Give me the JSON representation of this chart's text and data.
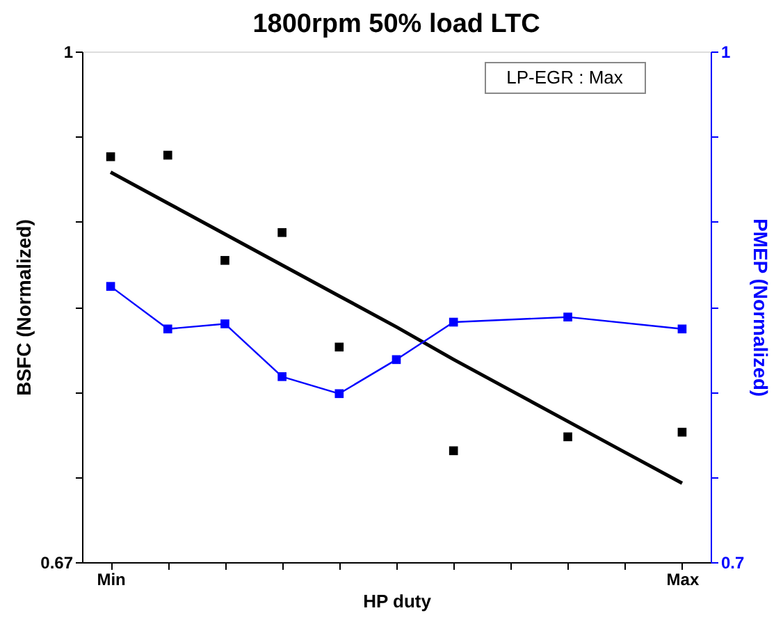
{
  "chart_data": {
    "type": "scatter",
    "title": "1800rpm 50% load LTC",
    "xlabel": "HP duty",
    "ylabel": "BSFC (Normalized)",
    "y2label": "PMEP (Normalized)",
    "annotations": [
      "LP-EGR : Max"
    ],
    "categories": [
      "Min",
      null,
      null,
      null,
      null,
      null,
      null,
      null,
      null,
      null,
      "Max"
    ],
    "ylim": [
      0.67,
      1
    ],
    "yticks": [
      0.67,
      {
        "value": 0.725,
        "label": null
      },
      {
        "value": 0.78,
        "label": null
      },
      {
        "value": 0.835,
        "label": null
      },
      {
        "value": 0.89,
        "label": null
      },
      {
        "value": 0.945,
        "label": null
      },
      1
    ],
    "y2lim": [
      0.7,
      1
    ],
    "y2ticks": [
      0.7,
      {
        "value": 0.75,
        "label": null
      },
      {
        "value": 0.8,
        "label": null
      },
      {
        "value": 0.85,
        "label": null
      },
      {
        "value": 0.9,
        "label": null
      },
      {
        "value": 0.95,
        "label": null
      },
      1
    ],
    "grid": false,
    "series": [
      {
        "marker": "square",
        "color": "#000000",
        "values": [
          0.932,
          0.933,
          0.865,
          0.883,
          0.809,
          null,
          0.742,
          null,
          0.751,
          null,
          0.754
        ]
      },
      {
        "type": "line",
        "marker": "none",
        "color": "#000000",
        "values": [
          0.922,
          0.902,
          0.882,
          0.862,
          0.842,
          0.822,
          0.801,
          0.781,
          0.761,
          0.741,
          0.721
        ]
      },
      {
        "type": "line",
        "marker": "square",
        "axis": "y2",
        "color": "#0000ff",
        "values": [
          0.862,
          0.837,
          0.84,
          0.809,
          0.799,
          0.819,
          0.841,
          null,
          0.844,
          null,
          0.837
        ]
      }
    ]
  }
}
